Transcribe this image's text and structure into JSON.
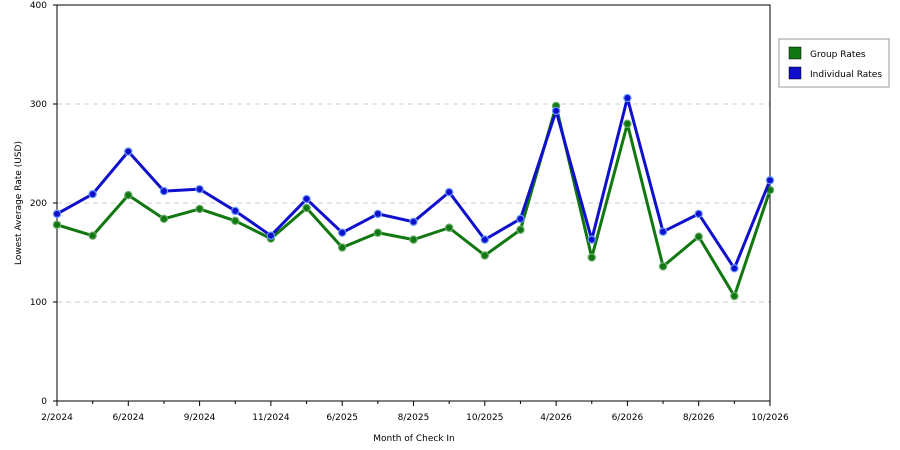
{
  "chart_data": {
    "type": "line",
    "xlabel": "Month of Check In",
    "ylabel": "Lowest Average Rate (USD)",
    "ylim": [
      0,
      400
    ],
    "yticks": [
      0,
      100,
      200,
      300,
      400
    ],
    "grid": "horizontal dashed at 100, 200, 300",
    "legend_position": "right",
    "x_tick_labels": [
      "2/2024",
      "6/2024",
      "9/2024",
      "11/2024",
      "6/2025",
      "8/2025",
      "10/2025",
      "4/2026",
      "6/2026",
      "8/2026",
      "10/2026"
    ],
    "series": [
      {
        "name": "Group Rates",
        "color": "#117711",
        "values": [
          178,
          167,
          208,
          184,
          194,
          182,
          164,
          195,
          155,
          170,
          163,
          175,
          147,
          173,
          298,
          145,
          280,
          136,
          166,
          106,
          213
        ]
      },
      {
        "name": "Individual Rates",
        "color": "#1010cc",
        "values": [
          189,
          209,
          252,
          212,
          214,
          192,
          167,
          204,
          170,
          189,
          181,
          211,
          163,
          184,
          293,
          163,
          306,
          171,
          189,
          134,
          223
        ]
      }
    ]
  }
}
